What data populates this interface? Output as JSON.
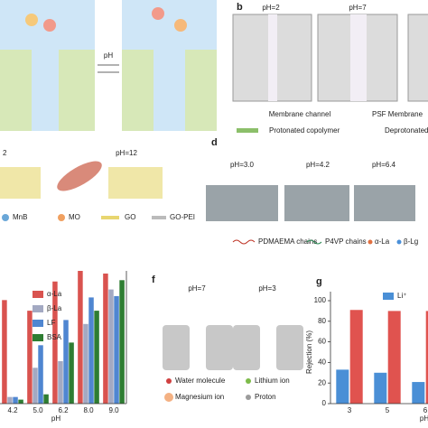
{
  "panel_a": {
    "arrow_label": "pH"
  },
  "panel_b": {
    "label": "b",
    "states": [
      "pH=2",
      "pH=7"
    ],
    "notes": [
      "Membrane channel",
      "PSF Membrane"
    ],
    "legend": [
      "Protonated copolymer",
      "Deprotonated"
    ]
  },
  "panel_c": {
    "states": [
      "2",
      "pH=12"
    ],
    "legend": [
      "MnB",
      "MO",
      "GO",
      "GO-PEI"
    ]
  },
  "panel_d": {
    "label": "d",
    "states": [
      "pH=3.0",
      "pH=4.2",
      "pH=6.4"
    ],
    "legend": [
      "PDMAEMA chains",
      "P4VP chains",
      "α-La",
      "β-Lg"
    ]
  },
  "panel_f": {
    "label": "f",
    "states": [
      "pH=7",
      "pH=3"
    ],
    "legend": [
      "Water molecule",
      "Lithium ion",
      "Magnesium ion",
      "Proton"
    ]
  },
  "chart_data": [
    {
      "type": "bar",
      "x_label": "pH",
      "categories": [
        "4.2",
        "5.0",
        "6.2",
        "8.0",
        "9.0"
      ],
      "ylim": [
        0,
        100
      ],
      "series": [
        {
          "name": "α-La",
          "color": "#d9534f",
          "values": [
            78,
            70,
            92,
            100,
            98
          ]
        },
        {
          "name": "β-La",
          "color": "#a3a9c2",
          "values": [
            5,
            27,
            32,
            60,
            86
          ]
        },
        {
          "name": "LF",
          "color": "#4f86d1",
          "values": [
            5,
            44,
            63,
            80,
            81
          ]
        },
        {
          "name": "BSA",
          "color": "#2e7d32",
          "values": [
            3,
            7,
            46,
            70,
            93
          ]
        }
      ]
    },
    {
      "type": "bar",
      "panel_label": "g",
      "x_label": "pH",
      "y_label": "Rejection (%)",
      "categories": [
        "3",
        "5",
        "6"
      ],
      "ylim": [
        0,
        100
      ],
      "yticks": [
        0,
        20,
        40,
        60,
        80,
        100
      ],
      "series": [
        {
          "name": "Li⁺",
          "color": "#4a8fd6",
          "values": [
            33,
            30,
            21
          ]
        },
        {
          "color": "#e0534f",
          "values": [
            91,
            90,
            90
          ]
        }
      ]
    }
  ]
}
